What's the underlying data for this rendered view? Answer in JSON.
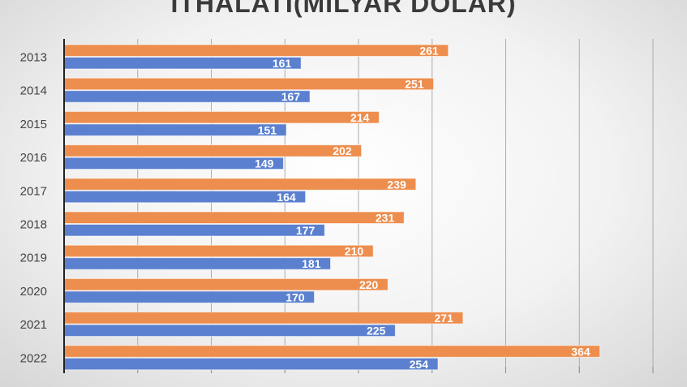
{
  "chart_data": {
    "type": "bar",
    "orientation": "horizontal",
    "title": "İTHALATI(MİLYAR DOLAR)",
    "categories": [
      "2013",
      "2014",
      "2015",
      "2016",
      "2017",
      "2018",
      "2019",
      "2020",
      "2021",
      "2022"
    ],
    "series": [
      {
        "color": "#ED8E4E",
        "values": [
          261,
          251,
          214,
          202,
          239,
          231,
          210,
          220,
          271,
          364
        ]
      },
      {
        "color": "#5B80CF",
        "values": [
          161,
          167,
          151,
          149,
          164,
          177,
          181,
          170,
          225,
          254
        ]
      }
    ],
    "xlim": [
      0,
      400
    ],
    "xticks": [
      0,
      50,
      100,
      150,
      200,
      250,
      300,
      350,
      400
    ],
    "grid": true,
    "legend": "none"
  }
}
